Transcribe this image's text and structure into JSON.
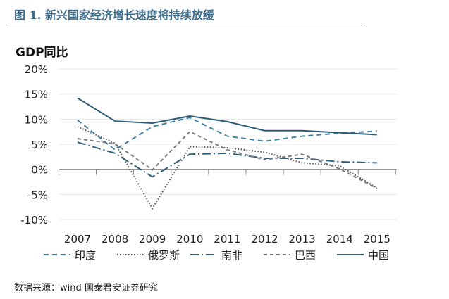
{
  "title": "图 1. 新兴国家经济增长速度将持续放缓",
  "footer": "数据来源：wind  国泰君安证券研究",
  "chart_data": {
    "type": "line",
    "ylabel": "GDP同比",
    "x": [
      "2007",
      "2008",
      "2009",
      "2010",
      "2011",
      "2012",
      "2013",
      "2014",
      "2015"
    ],
    "ylim": [
      -10,
      20
    ],
    "yticks": [
      20,
      15,
      10,
      5,
      0,
      -5,
      -10
    ],
    "ytick_labels": [
      "20%",
      "15%",
      "10%",
      "5%",
      "0%",
      "-5%",
      "-10%"
    ],
    "grid": true,
    "legend_position": "bottom",
    "series": [
      {
        "name": "印度",
        "values": [
          9.8,
          3.9,
          8.5,
          10.3,
          6.6,
          5.6,
          6.6,
          7.2,
          7.6
        ],
        "color": "#3f7f9f",
        "dash": "7,5"
      },
      {
        "name": "俄罗斯",
        "values": [
          8.5,
          5.2,
          -7.8,
          4.5,
          4.3,
          3.4,
          1.3,
          0.7,
          -3.7
        ],
        "color": "#555555",
        "dash": "1.5,2.5"
      },
      {
        "name": "南非",
        "values": [
          5.4,
          3.2,
          -1.5,
          3.0,
          3.2,
          2.2,
          2.2,
          1.5,
          1.3
        ],
        "color": "#2e5f7a",
        "dash": "12,4,2,4"
      },
      {
        "name": "巴西",
        "values": [
          6.1,
          5.1,
          -0.1,
          7.5,
          3.9,
          1.9,
          3.0,
          0.1,
          -3.8
        ],
        "color": "#7a7a82",
        "dash": "5,4"
      },
      {
        "name": "中国",
        "values": [
          14.2,
          9.6,
          9.2,
          10.6,
          9.5,
          7.7,
          7.7,
          7.3,
          6.9
        ],
        "color": "#2b5d75",
        "dash": ""
      }
    ]
  }
}
